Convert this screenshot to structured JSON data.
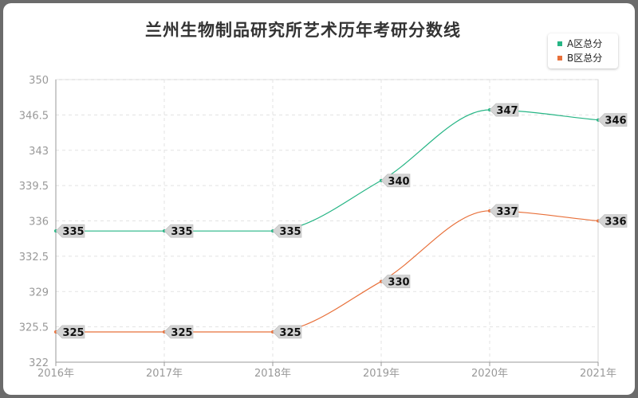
{
  "chart_data": {
    "type": "line",
    "title": "兰州生物制品研究所艺术历年考研分数线",
    "categories": [
      "2016年",
      "2017年",
      "2018年",
      "2019年",
      "2020年",
      "2021年"
    ],
    "series": [
      {
        "name": "A区总分",
        "color": "#26b585",
        "values": [
          335,
          335,
          335,
          340,
          347,
          346
        ]
      },
      {
        "name": "B区总分",
        "color": "#e8703a",
        "values": [
          325,
          325,
          325,
          330,
          337,
          336
        ]
      }
    ],
    "ylim": [
      322,
      350
    ],
    "yticks": [
      322,
      325.5,
      329,
      332.5,
      336,
      339.5,
      343,
      346.5,
      350
    ],
    "ytick_labels": [
      "322",
      "325.5",
      "329",
      "332.5",
      "336",
      "339.5",
      "343",
      "346.5",
      "350"
    ],
    "grid": true,
    "legend_position": "top-right"
  }
}
